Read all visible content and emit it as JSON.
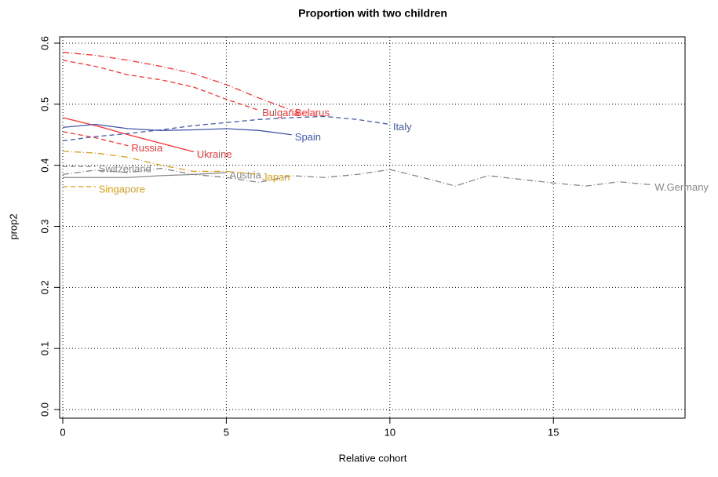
{
  "chart_data": {
    "type": "line",
    "title": "Proportion with two children",
    "x_label": "Relative cohort",
    "y_label": "prop2",
    "xlim": [
      0,
      19
    ],
    "ylim": [
      0,
      0.6
    ],
    "xticks": [
      0,
      5,
      10,
      15
    ],
    "yticks": [
      {
        "value": 0,
        "label": "0.0"
      },
      0.1,
      0.2,
      0.3,
      0.4,
      0.5,
      0.6
    ],
    "grid": true,
    "series": [
      {
        "name": "Belarus",
        "color": "#ff3030",
        "linestyle": "dashdot",
        "x": [
          0,
          1,
          2,
          3,
          4,
          5,
          6,
          7
        ],
        "values": [
          0.585,
          0.58,
          0.572,
          0.562,
          0.55,
          0.532,
          0.51,
          0.49
        ]
      },
      {
        "name": "Bulgaria",
        "color": "#ff3030",
        "linestyle": "dashed",
        "x": [
          0,
          1,
          2,
          3,
          4,
          5,
          6
        ],
        "values": [
          0.572,
          0.562,
          0.548,
          0.54,
          0.528,
          0.508,
          0.49
        ]
      },
      {
        "name": "Ukraine",
        "color": "#ff3030",
        "linestyle": "solid",
        "x": [
          0,
          1,
          2,
          3,
          4
        ],
        "values": [
          0.478,
          0.465,
          0.45,
          0.436,
          0.422
        ]
      },
      {
        "name": "Russia",
        "color": "#ff3030",
        "linestyle": "dashed",
        "x": [
          0,
          1,
          2
        ],
        "values": [
          0.455,
          0.445,
          0.432
        ]
      },
      {
        "name": "Italy",
        "color": "#4458a8",
        "linestyle": "dashed",
        "x": [
          0,
          1,
          2,
          3,
          4,
          5,
          6,
          7,
          8,
          9,
          10
        ],
        "values": [
          0.44,
          0.447,
          0.452,
          0.458,
          0.465,
          0.47,
          0.475,
          0.478,
          0.48,
          0.475,
          0.467
        ]
      },
      {
        "name": "Spain",
        "color": "#4458a8",
        "linestyle": "solid",
        "x": [
          0,
          1,
          2,
          3,
          4,
          5,
          6,
          7
        ],
        "values": [
          0.462,
          0.467,
          0.46,
          0.457,
          0.458,
          0.46,
          0.457,
          0.45
        ]
      },
      {
        "name": "Switzerland",
        "color": "#888888",
        "linestyle": "dashed",
        "x": [
          0,
          1
        ],
        "values": [
          0.398,
          0.398
        ]
      },
      {
        "name": "Austria",
        "color": "#888888",
        "linestyle": "solid",
        "x": [
          0,
          1,
          2,
          3,
          4,
          5
        ],
        "values": [
          0.38,
          0.38,
          0.38,
          0.383,
          0.385,
          0.388
        ]
      },
      {
        "name": "W.Germany",
        "color": "#888888",
        "linestyle": "dashdot",
        "x": [
          0,
          1,
          2,
          3,
          4,
          5,
          6,
          7,
          8,
          9,
          10,
          11,
          12,
          13,
          14,
          15,
          16,
          17,
          18
        ],
        "values": [
          0.385,
          0.392,
          0.388,
          0.395,
          0.385,
          0.38,
          0.372,
          0.383,
          0.38,
          0.385,
          0.393,
          0.38,
          0.366,
          0.383,
          0.377,
          0.371,
          0.366,
          0.373,
          0.368
        ]
      },
      {
        "name": "Japan",
        "color": "#d4a020",
        "linestyle": "dashdot",
        "x": [
          0,
          1,
          2,
          3,
          4,
          5,
          6
        ],
        "values": [
          0.423,
          0.42,
          0.413,
          0.4,
          0.39,
          0.39,
          0.385
        ]
      },
      {
        "name": "Singapore",
        "color": "#d4a020",
        "linestyle": "dashed",
        "x": [
          0,
          1
        ],
        "values": [
          0.365,
          0.365
        ]
      }
    ]
  }
}
